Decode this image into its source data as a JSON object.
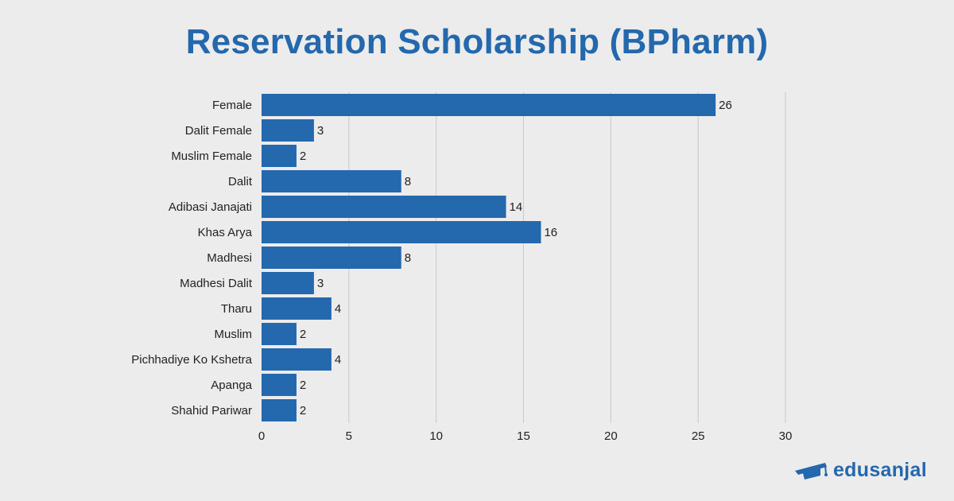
{
  "chart_data": {
    "type": "bar",
    "orientation": "horizontal",
    "title": "Reservation Scholarship (BPharm)",
    "categories": [
      "Female",
      "Dalit Female",
      "Muslim Female",
      "Dalit",
      "Adibasi Janajati",
      "Khas Arya",
      "Madhesi",
      "Madhesi Dalit",
      "Tharu",
      "Muslim",
      "Pichhadiye Ko Kshetra",
      "Apanga",
      "Shahid Pariwar"
    ],
    "values": [
      26,
      3,
      2,
      8,
      14,
      16,
      8,
      3,
      4,
      2,
      4,
      2,
      2
    ],
    "xlim": [
      0,
      30
    ],
    "xticks": [
      0,
      5,
      10,
      15,
      20,
      25,
      30
    ],
    "grid": "vertical",
    "bar_color": "#2468ad",
    "data_labels": true
  },
  "brand": {
    "name": "edusanjal",
    "icon": "graduation-cap-icon",
    "color": "#2468ad"
  }
}
